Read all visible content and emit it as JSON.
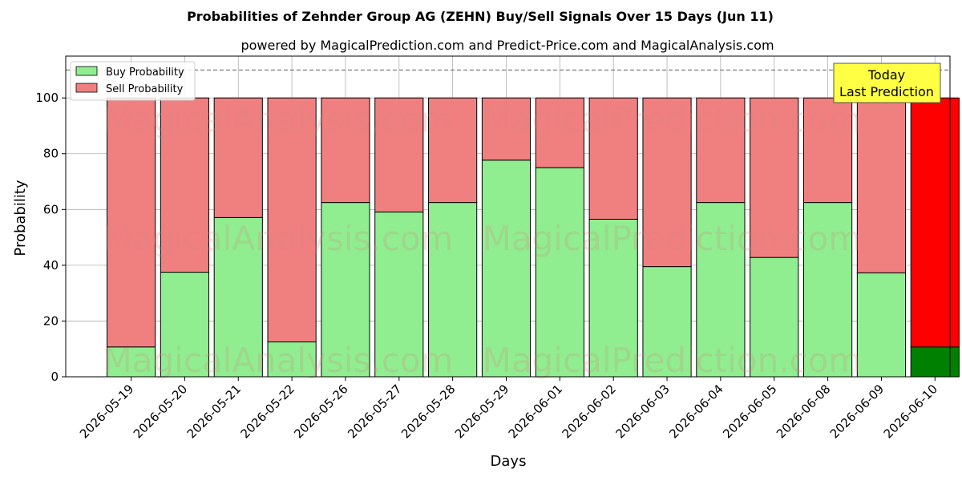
{
  "chart_data": {
    "type": "bar",
    "stacked": true,
    "title": "Probabilities of Zehnder Group AG (ZEHN) Buy/Sell Signals Over 15 Days (Jun 11)",
    "subtitle": "powered by MagicalPrediction.com and Predict-Price.com and MagicalAnalysis.com",
    "xlabel": "Days",
    "ylabel": "Probability",
    "ylim": [
      0,
      115
    ],
    "yticks": [
      0,
      20,
      40,
      60,
      80,
      100
    ],
    "reference_line": 110,
    "grid": true,
    "legend_position": "top-left",
    "categories": [
      "2026-05-19",
      "2026-05-20",
      "2026-05-21",
      "2026-05-22",
      "2026-05-26",
      "2026-05-27",
      "2026-05-28",
      "2026-05-29",
      "2026-06-01",
      "2026-06-02",
      "2026-06-03",
      "2026-06-04",
      "2026-06-05",
      "2026-06-08",
      "2026-06-09",
      "2026-06-10"
    ],
    "series": [
      {
        "name": "Buy Probability",
        "color": "#90ee90",
        "today_color": "#008000",
        "values": [
          10.7,
          37.5,
          57.1,
          12.5,
          62.5,
          59.1,
          62.5,
          77.7,
          75.0,
          56.5,
          39.5,
          62.5,
          42.8,
          62.5,
          37.3,
          10.7
        ]
      },
      {
        "name": "Sell Probability",
        "color": "#f08080",
        "today_color": "#ff0000",
        "values": [
          89.3,
          62.5,
          42.9,
          87.5,
          37.5,
          40.9,
          37.5,
          22.3,
          25.0,
          43.5,
          60.5,
          37.5,
          57.2,
          37.5,
          62.7,
          89.3
        ]
      }
    ],
    "annotation": {
      "lines": [
        "Today",
        "Last Prediction"
      ],
      "target_index": 15,
      "color": "#ffff44"
    },
    "watermarks": [
      "MagicalAnalysis.com",
      "MagicalPrediction.com"
    ]
  }
}
